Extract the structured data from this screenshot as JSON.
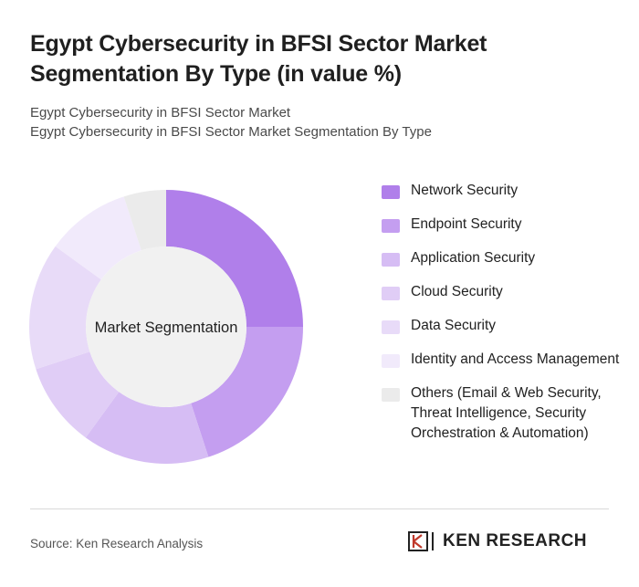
{
  "title": "Egypt Cybersecurity in BFSI Sector Market Segmentation By Type (in value %)",
  "subtitle_line1": "Egypt Cybersecurity in BFSI Sector Market",
  "subtitle_line2": "Egypt Cybersecurity in BFSI Sector Market Segmentation By Type",
  "source": "Source: Ken Research Analysis",
  "brand": "KEN RESEARCH",
  "chart_data": {
    "type": "pie",
    "variant": "donut",
    "center_label": "Market Segmentation",
    "series": [
      {
        "name": "Network Security",
        "value": 25,
        "color": "#b07fea"
      },
      {
        "name": "Endpoint Security",
        "value": 20,
        "color": "#c49ef0"
      },
      {
        "name": "Application Security",
        "value": 15,
        "color": "#d6bdf4"
      },
      {
        "name": "Cloud Security",
        "value": 10,
        "color": "#e0cdf6"
      },
      {
        "name": "Data Security",
        "value": 15,
        "color": "#e8dbf8"
      },
      {
        "name": "Identity and Access Management",
        "value": 10,
        "color": "#f1eafb"
      },
      {
        "name": "Others (Email & Web Security, Threat Intelligence, Security Orchestration & Automation)",
        "value": 5,
        "color": "#ebebeb"
      }
    ],
    "legend_position": "right"
  }
}
